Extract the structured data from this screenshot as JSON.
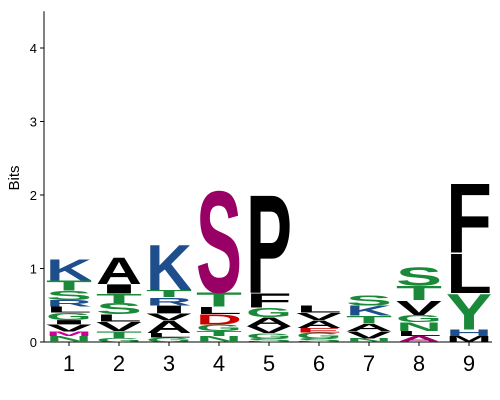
{
  "chart_data": {
    "type": "sequence_logo",
    "ylabel": "Bits",
    "ylim": [
      0,
      4.5
    ],
    "yticks": [
      "0",
      "1",
      "2",
      "3",
      "4"
    ],
    "xtick_labels": [
      "1",
      "2",
      "3",
      "4",
      "5",
      "6",
      "7",
      "8",
      "9"
    ],
    "colors": {
      "K": "#1f4e8c",
      "R": "#1f4e8c",
      "H": "#1f4e8c",
      "D": "#cc0000",
      "E": "#cc0000",
      "S": "#1a8a3a",
      "T": "#1a8a3a",
      "G": "#1a8a3a",
      "N": "#1a8a3a",
      "Q": "#1a8a3a",
      "Y": "#1a8a3a",
      "C": "#1a8a3a",
      "A": "#000000",
      "V": "#000000",
      "L": "#000000",
      "I": "#000000",
      "P": "#000000",
      "F": "#000000",
      "M": "#000000",
      "W": "#000000"
    },
    "columns": [
      {
        "position": "1",
        "stack": [
          {
            "letter": "N",
            "height": 0.08,
            "color": "#1a8a3a"
          },
          {
            "letter": "M",
            "height": 0.06,
            "color": "#cc0099"
          },
          {
            "letter": "V",
            "height": 0.1
          },
          {
            "letter": "I",
            "height": 0.06
          },
          {
            "letter": "G",
            "height": 0.1
          },
          {
            "letter": "L",
            "height": 0.08
          },
          {
            "letter": "R",
            "height": 0.09
          },
          {
            "letter": "S",
            "height": 0.13
          },
          {
            "letter": "T",
            "height": 0.14
          },
          {
            "letter": "K",
            "height": 0.3
          }
        ]
      },
      {
        "position": "2",
        "stack": [
          {
            "letter": "G",
            "height": 0.05
          },
          {
            "letter": "T",
            "height": 0.1
          },
          {
            "letter": "V",
            "height": 0.13
          },
          {
            "letter": "L",
            "height": 0.1
          },
          {
            "letter": "S",
            "height": 0.15
          },
          {
            "letter": "T",
            "height": 0.13
          },
          {
            "letter": "I",
            "height": 0.13
          },
          {
            "letter": "A",
            "height": 0.37
          }
        ]
      },
      {
        "position": "3",
        "stack": [
          {
            "letter": "G",
            "height": 0.06
          },
          {
            "letter": "L",
            "height": 0.06
          },
          {
            "letter": "A",
            "height": 0.17
          },
          {
            "letter": "V",
            "height": 0.1
          },
          {
            "letter": "I",
            "height": 0.11
          },
          {
            "letter": "R",
            "height": 0.11
          },
          {
            "letter": "T",
            "height": 0.1
          },
          {
            "letter": "K",
            "height": 0.64
          }
        ]
      },
      {
        "position": "4",
        "stack": [
          {
            "letter": "N",
            "height": 0.08
          },
          {
            "letter": "T",
            "height": 0.07
          },
          {
            "letter": "G",
            "height": 0.09
          },
          {
            "letter": "D",
            "height": 0.14
          },
          {
            "letter": "L",
            "height": 0.1
          },
          {
            "letter": "T",
            "height": 0.2
          },
          {
            "letter": "S",
            "height": 1.42,
            "color": "#990066"
          }
        ]
      },
      {
        "position": "5",
        "stack": [
          {
            "letter": "S",
            "height": 0.05
          },
          {
            "letter": "G",
            "height": 0.07
          },
          {
            "letter": "V",
            "height": 0.1
          },
          {
            "letter": "A",
            "height": 0.12
          },
          {
            "letter": "G",
            "height": 0.13
          },
          {
            "letter": "F",
            "height": 0.2
          },
          {
            "letter": "P",
            "height": 1.38
          }
        ]
      },
      {
        "position": "6",
        "stack": [
          {
            "letter": "S",
            "height": 0.05
          },
          {
            "letter": "G",
            "height": 0.08
          },
          {
            "letter": "E",
            "height": 0.06
          },
          {
            "letter": "A",
            "height": 0.11
          },
          {
            "letter": "V",
            "height": 0.1
          },
          {
            "letter": "L",
            "height": 0.1
          }
        ]
      },
      {
        "position": "7",
        "stack": [
          {
            "letter": "N",
            "height": 0.05
          },
          {
            "letter": "V",
            "height": 0.1
          },
          {
            "letter": "A",
            "height": 0.1
          },
          {
            "letter": "T",
            "height": 0.11
          },
          {
            "letter": "K",
            "height": 0.14
          },
          {
            "letter": "S",
            "height": 0.14
          }
        ]
      },
      {
        "position": "8",
        "stack": [
          {
            "letter": "A",
            "height": 0.08,
            "color": "#990066"
          },
          {
            "letter": "L",
            "height": 0.07
          },
          {
            "letter": "N",
            "height": 0.12
          },
          {
            "letter": "G",
            "height": 0.1
          },
          {
            "letter": "V",
            "height": 0.2
          },
          {
            "letter": "T",
            "height": 0.2
          },
          {
            "letter": "S",
            "height": 0.25
          }
        ]
      },
      {
        "position": "9",
        "stack": [
          {
            "letter": "M",
            "height": 0.08
          },
          {
            "letter": "H",
            "height": 0.09
          },
          {
            "letter": "Y",
            "height": 0.5
          },
          {
            "letter": "L",
            "height": 0.55
          },
          {
            "letter": "F",
            "height": 0.97
          }
        ]
      }
    ]
  }
}
